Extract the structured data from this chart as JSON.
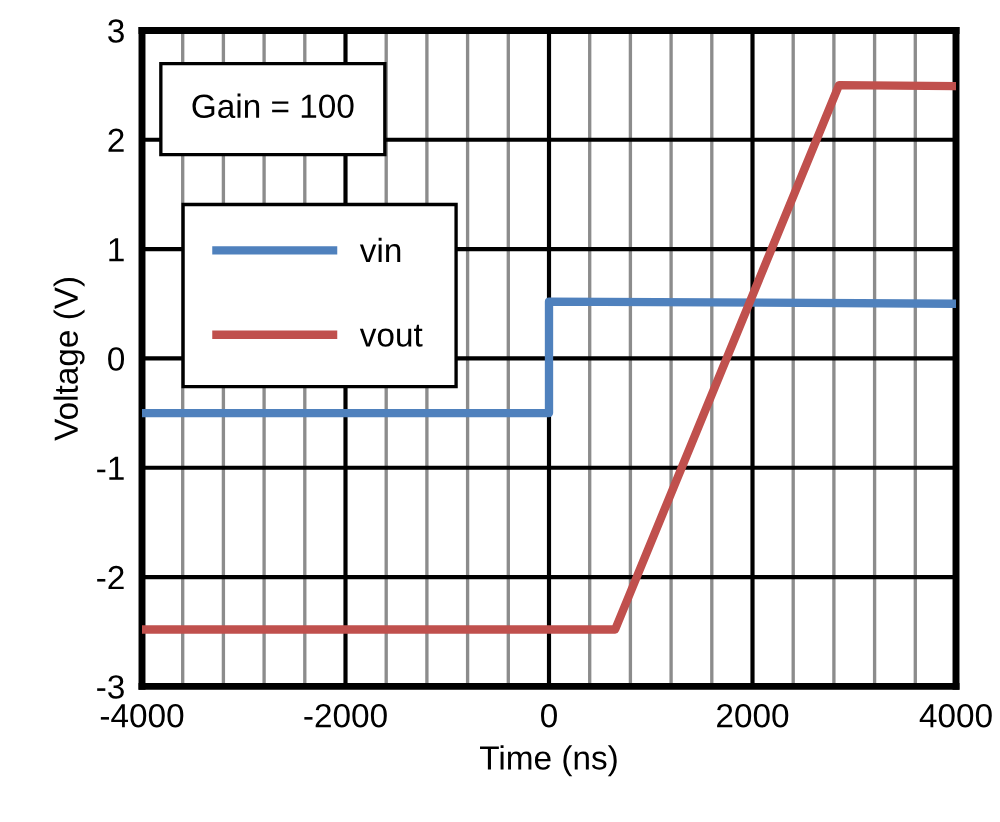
{
  "chart_data": {
    "type": "line",
    "xlabel": "Time (ns)",
    "ylabel": "Voltage (V)",
    "annotations": [
      "Gain = 100"
    ],
    "series": [
      {
        "name": "vin",
        "color": "#4f81bd",
        "x": [
          -4000,
          0,
          0,
          4000
        ],
        "values": [
          -0.5,
          -0.5,
          0.52,
          0.5
        ]
      },
      {
        "name": "vout",
        "color": "#c0504d",
        "x": [
          -4000,
          650,
          2850,
          4000
        ],
        "values": [
          -2.48,
          -2.48,
          2.5,
          2.49
        ]
      }
    ],
    "xlim": [
      -4000,
      4000
    ],
    "ylim": [
      -3,
      3
    ],
    "xticks": [
      -4000,
      {
        "value": -3600,
        "label": null
      },
      {
        "value": -3200,
        "label": null
      },
      {
        "value": -2800,
        "label": null
      },
      {
        "value": -2400,
        "label": null
      },
      -2000,
      {
        "value": -1600,
        "label": null
      },
      {
        "value": -1200,
        "label": null
      },
      {
        "value": -800,
        "label": null
      },
      {
        "value": -400,
        "label": null
      },
      0,
      {
        "value": 400,
        "label": null
      },
      {
        "value": 800,
        "label": null
      },
      {
        "value": 1200,
        "label": null
      },
      {
        "value": 1600,
        "label": null
      },
      2000,
      {
        "value": 2400,
        "label": null
      },
      {
        "value": 2800,
        "label": null
      },
      {
        "value": 3200,
        "label": null
      },
      {
        "value": 3600,
        "label": null
      },
      4000
    ],
    "yticks": [
      -3,
      -2,
      -1,
      0,
      1,
      2,
      3
    ],
    "grid": true,
    "legend": "top left",
    "marker": "none",
    "line_style": "solid"
  }
}
